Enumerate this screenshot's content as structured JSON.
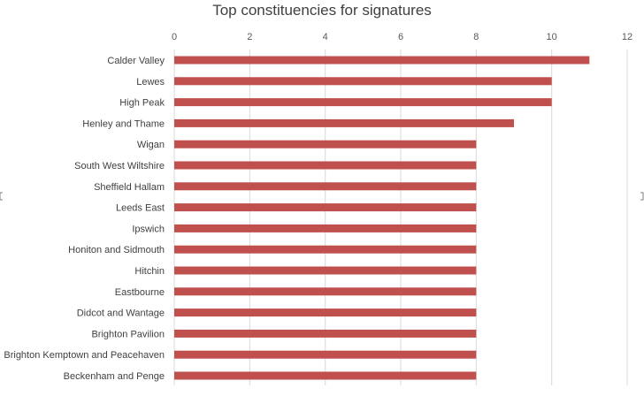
{
  "chart_data": {
    "type": "bar",
    "orientation": "horizontal",
    "title": "Top constituencies for signatures",
    "xlabel": "",
    "ylabel": "",
    "xlim": [
      0,
      12
    ],
    "x_ticks": [
      0,
      2,
      4,
      6,
      8,
      10,
      12
    ],
    "x_axis_position": "top",
    "grid": true,
    "legend": "none",
    "categories": [
      "Calder Valley",
      "Lewes",
      "High Peak",
      "Henley and Thame",
      "Wigan",
      "South West Wiltshire",
      "Sheffield Hallam",
      "Leeds East",
      "Ipswich",
      "Honiton and Sidmouth",
      "Hitchin",
      "Eastbourne",
      "Didcot and Wantage",
      "Brighton Pavilion",
      "Brighton Kemptown and Peacehaven",
      "Beckenham and Penge"
    ],
    "values": [
      11,
      10,
      10,
      9,
      8,
      8,
      8,
      8,
      8,
      8,
      8,
      8,
      8,
      8,
      8,
      8
    ],
    "bar_color": "#c0504d"
  }
}
